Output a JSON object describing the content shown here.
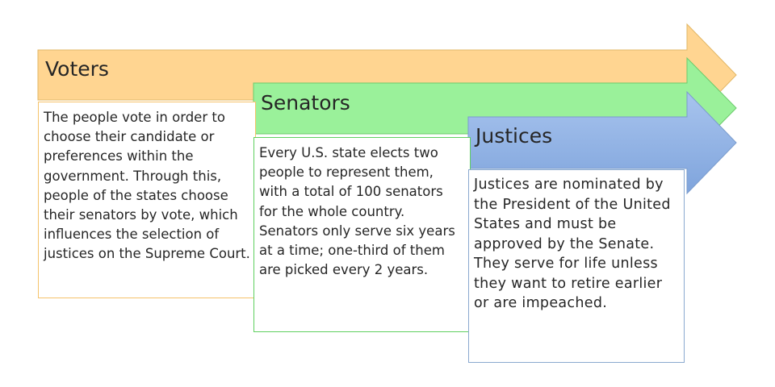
{
  "stages": [
    {
      "title": "Voters",
      "color": "#FFD591",
      "text": "The people vote in order to choose their candidate or preferences within the government. Through this, people of the states choose their senators by vote, which influences the selection of justices on the Supreme Court."
    },
    {
      "title": "Senators",
      "color": "#9AF19A",
      "text": "Every U.S. state elects two people to represent them, with a total of 100 senators for the whole country. Senators only serve six years at a time; one-third of them are picked every 2 years."
    },
    {
      "title": "Justices",
      "color_top": "#A8C4EE",
      "color_bottom": "#7FA4DC",
      "text": "Justices are nominated by the President of the United States and must be approved by the Senate. They serve for life unless they want to retire earlier or are impeached."
    }
  ]
}
